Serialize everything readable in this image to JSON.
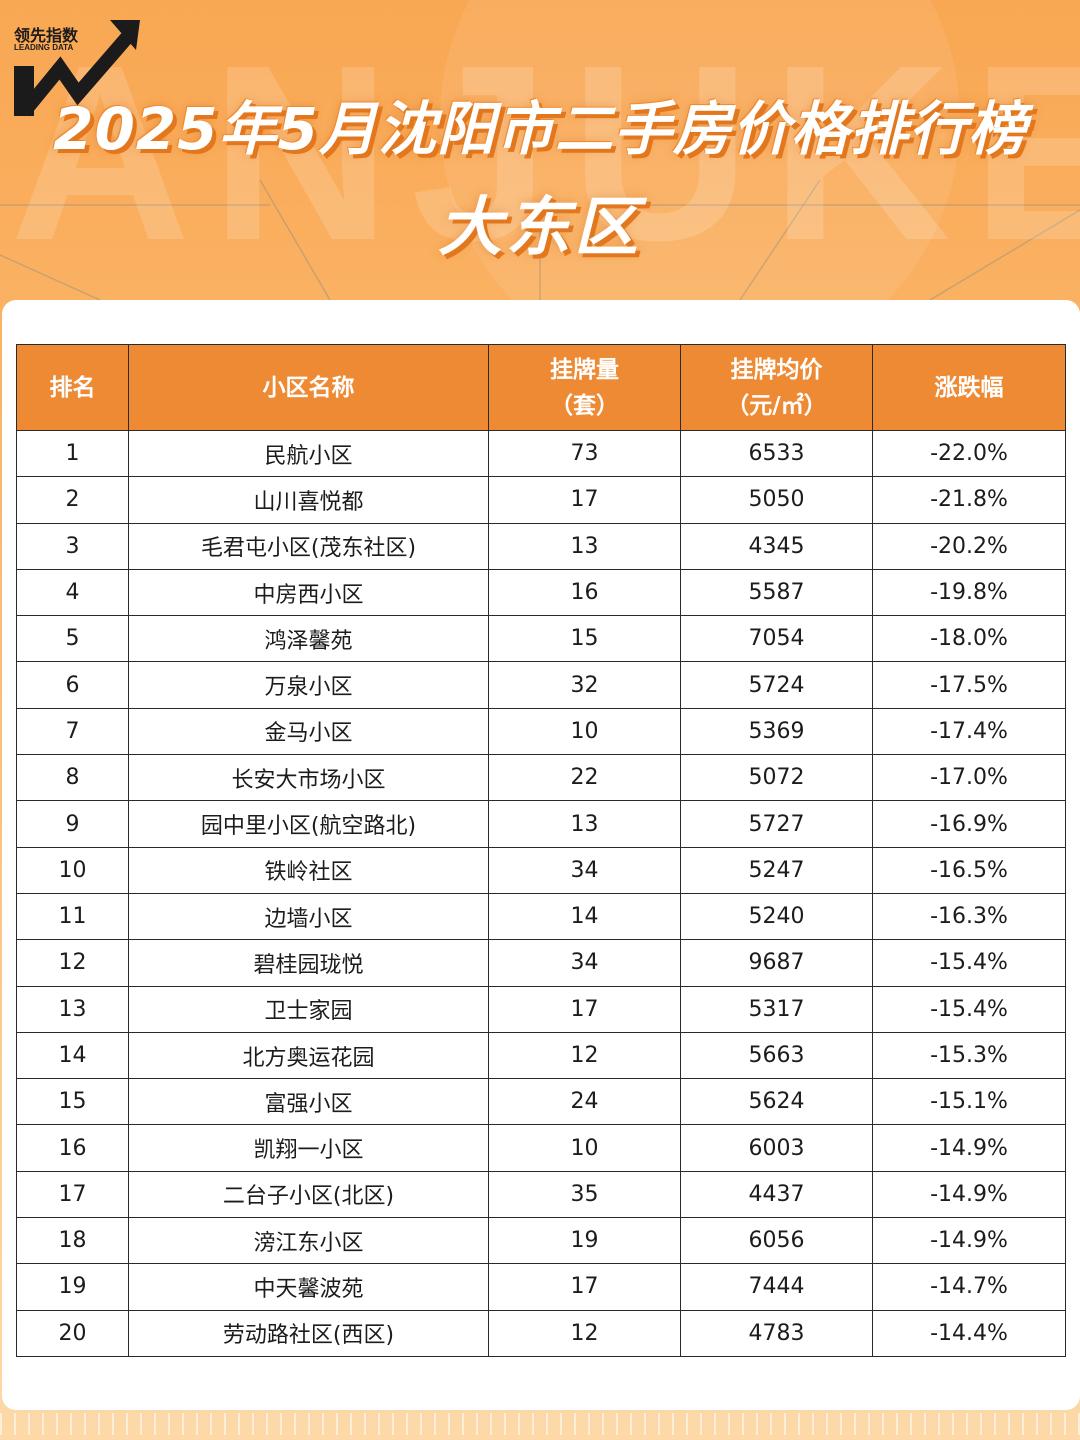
{
  "logo": {
    "cn_text": "领先指数",
    "en_text": "LEADING DATA"
  },
  "watermark_text": "ANJUKE",
  "title": "2025年5月沈阳市二手房价格排行榜",
  "subtitle": "大东区",
  "table": {
    "headers": {
      "rank": "排名",
      "name": "小区名称",
      "listings_line1": "挂牌量",
      "listings_line2": "（套）",
      "price_line1": "挂牌均价",
      "price_line2": "（元/㎡）",
      "change": "涨跌幅"
    },
    "rows": [
      {
        "rank": "1",
        "name": "民航小区",
        "listings": "73",
        "price": "6533",
        "change": "-22.0%"
      },
      {
        "rank": "2",
        "name": "山川喜悦都",
        "listings": "17",
        "price": "5050",
        "change": "-21.8%"
      },
      {
        "rank": "3",
        "name": "毛君屯小区(茂东社区)",
        "listings": "13",
        "price": "4345",
        "change": "-20.2%"
      },
      {
        "rank": "4",
        "name": "中房西小区",
        "listings": "16",
        "price": "5587",
        "change": "-19.8%"
      },
      {
        "rank": "5",
        "name": "鸿泽馨苑",
        "listings": "15",
        "price": "7054",
        "change": "-18.0%"
      },
      {
        "rank": "6",
        "name": "万泉小区",
        "listings": "32",
        "price": "5724",
        "change": "-17.5%"
      },
      {
        "rank": "7",
        "name": "金马小区",
        "listings": "10",
        "price": "5369",
        "change": "-17.4%"
      },
      {
        "rank": "8",
        "name": "长安大市场小区",
        "listings": "22",
        "price": "5072",
        "change": "-17.0%"
      },
      {
        "rank": "9",
        "name": "园中里小区(航空路北)",
        "listings": "13",
        "price": "5727",
        "change": "-16.9%"
      },
      {
        "rank": "10",
        "name": "铁岭社区",
        "listings": "34",
        "price": "5247",
        "change": "-16.5%"
      },
      {
        "rank": "11",
        "name": "边墙小区",
        "listings": "14",
        "price": "5240",
        "change": "-16.3%"
      },
      {
        "rank": "12",
        "name": "碧桂园珑悦",
        "listings": "34",
        "price": "9687",
        "change": "-15.4%"
      },
      {
        "rank": "13",
        "name": "卫士家园",
        "listings": "17",
        "price": "5317",
        "change": "-15.4%"
      },
      {
        "rank": "14",
        "name": "北方奥运花园",
        "listings": "12",
        "price": "5663",
        "change": "-15.3%"
      },
      {
        "rank": "15",
        "name": "富强小区",
        "listings": "24",
        "price": "5624",
        "change": "-15.1%"
      },
      {
        "rank": "16",
        "name": "凯翔一小区",
        "listings": "10",
        "price": "6003",
        "change": "-14.9%"
      },
      {
        "rank": "17",
        "name": "二台子小区(北区)",
        "listings": "35",
        "price": "4437",
        "change": "-14.9%"
      },
      {
        "rank": "18",
        "name": "滂江东小区",
        "listings": "19",
        "price": "6056",
        "change": "-14.9%"
      },
      {
        "rank": "19",
        "name": "中天馨波苑",
        "listings": "17",
        "price": "7444",
        "change": "-14.7%"
      },
      {
        "rank": "20",
        "name": "劳动路社区(西区)",
        "listings": "12",
        "price": "4783",
        "change": "-14.4%"
      }
    ]
  },
  "colors": {
    "header_bg": "#ee8a34",
    "page_bg": "#f9a752",
    "title_shadow": "#e2771d"
  }
}
